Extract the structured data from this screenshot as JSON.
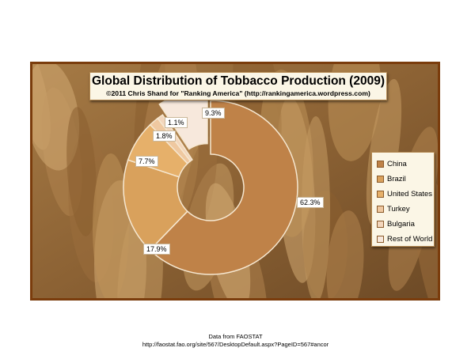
{
  "chart_data": {
    "type": "pie",
    "title": "Global Distribution of Tobbacco Production (2009)",
    "subtitle": "©2011 Chris Shand for \"Ranking America\" (http://rankingamerica.wordpress.com)",
    "categories": [
      "China",
      "Brazil",
      "United States",
      "Turkey",
      "Bulgaria",
      "Rest of World"
    ],
    "values": [
      62.3,
      17.9,
      7.7,
      1.8,
      1.1,
      9.3
    ],
    "data_labels": [
      "62.3%",
      "17.9%",
      "7.7%",
      "1.8%",
      "1.1%",
      "9.3%"
    ],
    "colors": [
      "#bf8248",
      "#d9a15c",
      "#e6b06a",
      "#efc8a0",
      "#f3d6bc",
      "#f7e8dc"
    ],
    "exploded": "Rest of World",
    "legend_position": "right",
    "style": "doughnut"
  },
  "footer": {
    "source": "Data from FAOSTAT",
    "url": "http://faostat.fao.org/site/567/DesktopDefault.aspx?PageID=567#ancor"
  }
}
